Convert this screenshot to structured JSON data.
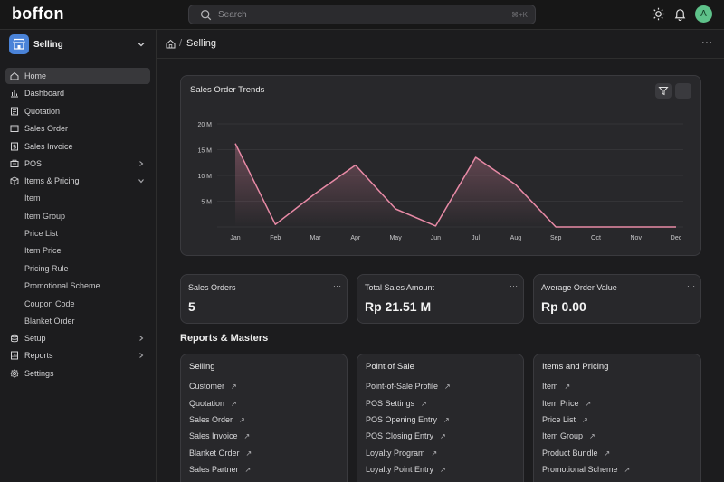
{
  "brand": {
    "logo_text": "boffon"
  },
  "search": {
    "placeholder": "Search",
    "shortcut": "⌘+K"
  },
  "user": {
    "avatar_initial": "A"
  },
  "sidebar": {
    "app_name": "Selling",
    "items": [
      {
        "label": "Home",
        "icon": "home-icon"
      },
      {
        "label": "Dashboard",
        "icon": "bar-chart-icon"
      },
      {
        "label": "Quotation",
        "icon": "document-icon"
      },
      {
        "label": "Sales Order",
        "icon": "sales-order-icon"
      },
      {
        "label": "Sales Invoice",
        "icon": "invoice-icon"
      },
      {
        "label": "POS",
        "icon": "pos-icon"
      },
      {
        "label": "Items & Pricing",
        "icon": "box-icon"
      },
      {
        "label": "Setup",
        "icon": "database-icon"
      },
      {
        "label": "Reports",
        "icon": "report-icon"
      },
      {
        "label": "Settings",
        "icon": "gear-icon"
      }
    ],
    "sub_items": [
      "Item",
      "Item Group",
      "Price List",
      "Item Price",
      "Pricing Rule",
      "Promotional Scheme",
      "Coupon Code",
      "Blanket Order"
    ]
  },
  "breadcrumb": {
    "separator": "/",
    "title": "Selling"
  },
  "chart": {
    "title": "Sales Order Trends"
  },
  "chart_data": {
    "type": "area",
    "categories": [
      "Jan",
      "Feb",
      "Mar",
      "Apr",
      "May",
      "Jun",
      "Jul",
      "Aug",
      "Sep",
      "Oct",
      "Nov",
      "Dec"
    ],
    "values": [
      16.2,
      0.5,
      6.5,
      12,
      3.5,
      0.2,
      13.5,
      8.2,
      0,
      0,
      0,
      0
    ],
    "y_ticks": [
      "5 M",
      "10 M",
      "15 M",
      "20 M"
    ],
    "ylim": [
      0,
      20
    ],
    "line_color": "#e88aa6",
    "grid": true
  },
  "stats": [
    {
      "label": "Sales Orders",
      "value": "5"
    },
    {
      "label": "Total Sales Amount",
      "value": "Rp 21.51 M"
    },
    {
      "label": "Average Order Value",
      "value": "Rp 0.00"
    }
  ],
  "reports_title": "Reports & Masters",
  "groups": [
    {
      "title": "Selling",
      "links": [
        "Customer",
        "Quotation",
        "Sales Order",
        "Sales Invoice",
        "Blanket Order",
        "Sales Partner"
      ]
    },
    {
      "title": "Point of Sale",
      "links": [
        "Point-of-Sale Profile",
        "POS Settings",
        "POS Opening Entry",
        "POS Closing Entry",
        "Loyalty Program",
        "Loyalty Point Entry"
      ]
    },
    {
      "title": "Items and Pricing",
      "links": [
        "Item",
        "Item Price",
        "Price List",
        "Item Group",
        "Product Bundle",
        "Promotional Scheme"
      ]
    }
  ],
  "link_arrow": "↗",
  "more_dots": "···"
}
